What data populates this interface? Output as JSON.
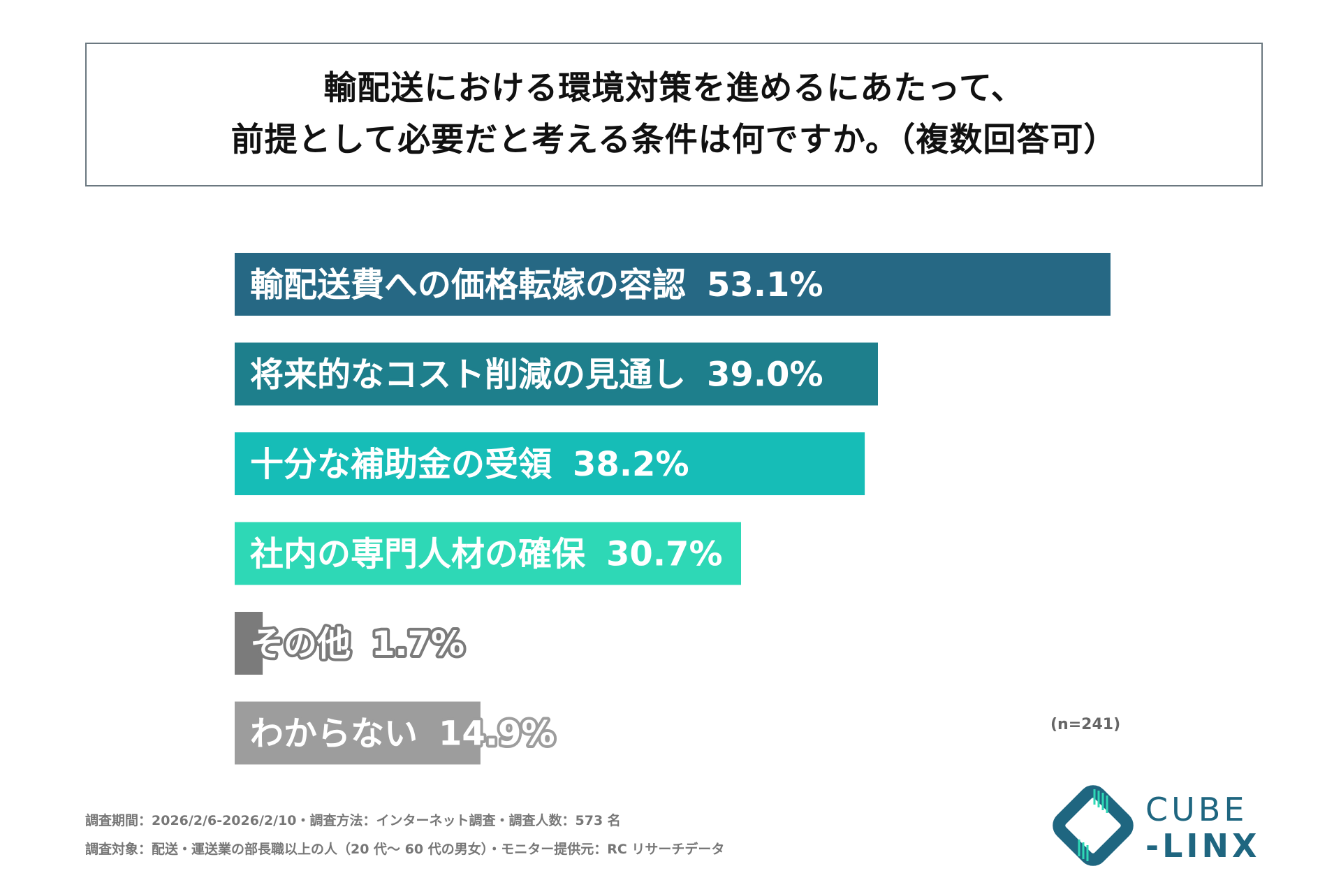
{
  "title": {
    "line1": "輸配送における環境対策を進めるにあたって、",
    "line2": "前提として必要だと考える条件は何ですか。（複数回答可）"
  },
  "chart_data": {
    "type": "bar",
    "orientation": "horizontal",
    "categories": [
      "輸配送費への価格転嫁の容認",
      "将来的なコスト削減の見通し",
      "十分な補助金の受領",
      "社内の専門人材の確保",
      "その他",
      "わからない"
    ],
    "values": [
      53.1,
      39.0,
      38.2,
      30.7,
      1.7,
      14.9
    ],
    "value_labels": [
      "53.1%",
      "39.0%",
      "38.2%",
      "30.7%",
      "1.7%",
      "14.9%"
    ],
    "bar_colors": [
      "#266884",
      "#1e7f8c",
      "#16bdb7",
      "#2ed8b6",
      "#7b7b7b",
      "#9d9d9d"
    ],
    "label_stroke_colors": [
      "#266884",
      "#1e7f8c",
      "#16bdb7",
      "#2ed8b6",
      "#7b7b7b",
      "#9d9d9d"
    ],
    "xlim": [
      0,
      53.1
    ],
    "grid": false,
    "legend": "none"
  },
  "note": "(n=241)",
  "footer": {
    "line1": "調査期間：2026/2/6-2026/2/10・調査方法：インターネット調査・調査人数：573 名",
    "line2": "調査対象：配送・運送業の部長職以上の人（20 代～ 60 代の男女）・モニター提供元：RC リサーチデータ"
  },
  "logo": {
    "word1": "CUBE",
    "word2": "-LINX",
    "color": "#1f6680",
    "accent": "#2ed8b6"
  }
}
